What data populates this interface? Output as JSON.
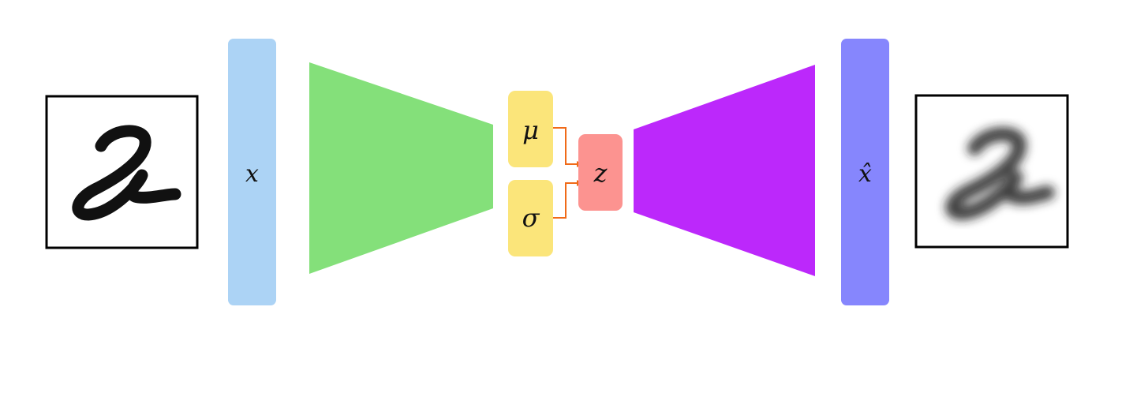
{
  "labels": {
    "x": "x",
    "mu": "μ",
    "sigma": "σ",
    "z": "z",
    "x_hat": "x̂"
  },
  "digit": "2",
  "colors": {
    "input_bar": "#acd3f5",
    "encoder": "#84e07a",
    "latent_params": "#fbe57a",
    "latent_z": "#fc9390",
    "decoder": "#bc28fb",
    "output_bar": "#8686fd",
    "arrow": "#f06a18",
    "frame": "#000000"
  },
  "icons": {
    "input_image": "handwritten-digit-2-sharp",
    "output_image": "handwritten-digit-2-blurred"
  }
}
